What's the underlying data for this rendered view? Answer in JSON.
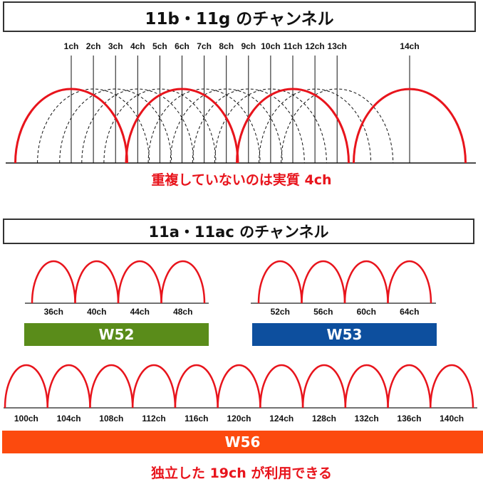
{
  "section1": {
    "title": "11b・11g のチャンネル",
    "channels": [
      "1ch",
      "2ch",
      "3ch",
      "4ch",
      "5ch",
      "6ch",
      "7ch",
      "8ch",
      "9ch",
      "10ch",
      "11ch",
      "12ch",
      "13ch",
      "14ch"
    ],
    "non_overlapping": [
      "1ch",
      "6ch",
      "11ch",
      "14ch"
    ],
    "note": "重複していないのは実質 4ch"
  },
  "section2": {
    "title": "11a・11ac のチャンネル",
    "groups": [
      {
        "name": "W52",
        "color": "#5a8c1a",
        "channels": [
          "36ch",
          "40ch",
          "44ch",
          "48ch"
        ]
      },
      {
        "name": "W53",
        "color": "#0d4f9e",
        "channels": [
          "52ch",
          "56ch",
          "60ch",
          "64ch"
        ]
      },
      {
        "name": "W56",
        "color": "#fc4a0e",
        "channels": [
          "100ch",
          "104ch",
          "108ch",
          "112ch",
          "116ch",
          "120ch",
          "124ch",
          "128ch",
          "132ch",
          "136ch",
          "140ch"
        ]
      }
    ],
    "note": "独立した 19ch が利用できる"
  },
  "colors": {
    "arc": "#e8141c",
    "line": "#111111"
  }
}
